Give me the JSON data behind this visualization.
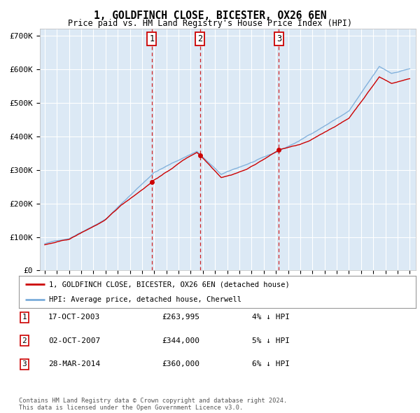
{
  "title": "1, GOLDFINCH CLOSE, BICESTER, OX26 6EN",
  "subtitle": "Price paid vs. HM Land Registry's House Price Index (HPI)",
  "background_color": "#ffffff",
  "plot_bg_color": "#dce9f5",
  "grid_color": "#ffffff",
  "ylim": [
    0,
    720000
  ],
  "yticks": [
    0,
    100000,
    200000,
    300000,
    400000,
    500000,
    600000,
    700000
  ],
  "ytick_labels": [
    "£0",
    "£100K",
    "£200K",
    "£300K",
    "£400K",
    "£500K",
    "£600K",
    "£700K"
  ],
  "sale_dates": [
    2003.8,
    2007.75,
    2014.25
  ],
  "sale_prices": [
    263995,
    344000,
    360000
  ],
  "sale_labels": [
    "1",
    "2",
    "3"
  ],
  "legend_line1": "1, GOLDFINCH CLOSE, BICESTER, OX26 6EN (detached house)",
  "legend_line2": "HPI: Average price, detached house, Cherwell",
  "table": [
    {
      "num": "1",
      "date": "17-OCT-2003",
      "price": "£263,995",
      "hpi": "4% ↓ HPI"
    },
    {
      "num": "2",
      "date": "02-OCT-2007",
      "price": "£344,000",
      "hpi": "5% ↓ HPI"
    },
    {
      "num": "3",
      "date": "28-MAR-2014",
      "price": "£360,000",
      "hpi": "6% ↓ HPI"
    }
  ],
  "footnote": "Contains HM Land Registry data © Crown copyright and database right 2024.\nThis data is licensed under the Open Government Licence v3.0.",
  "red_line_color": "#cc0000",
  "blue_line_color": "#7aacda",
  "dashed_line_color": "#cc0000",
  "xstart": 1995,
  "xend": 2025
}
